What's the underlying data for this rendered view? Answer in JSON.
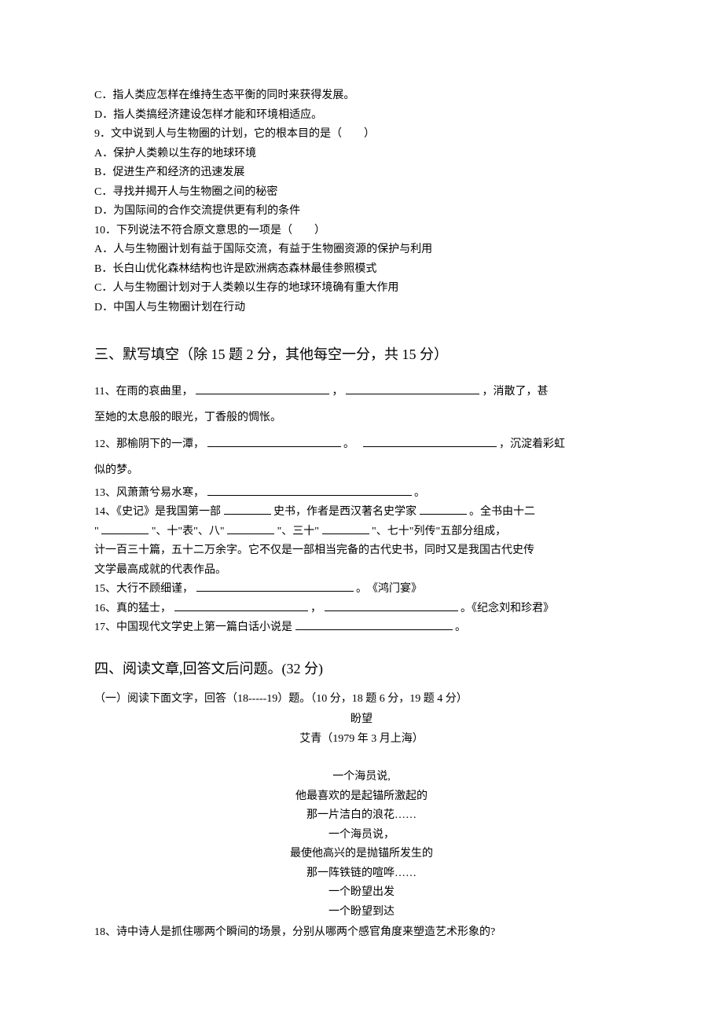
{
  "optC": "C．指人类应怎样在维持生态平衡的同时来获得发展。",
  "optD": "D．指人类搞经济建设怎样才能和环境相适应。",
  "q9": "9．文中说到人与生物圈的计划，它的根本目的是（　　）",
  "q9A": "A．保护人类赖以生存的地球环境",
  "q9B": "B．促进生产和经济的迅速发展",
  "q9C": "C．寻找并揭开人与生物圈之间的秘密",
  "q9D": "D．为国际间的合作交流提供更有利的条件",
  "q10": "10．下列说法不符合原文意思的一项是（　　）",
  "q10A": "A．人与生物圈计划有益于国际交流，有益于生物圈资源的保护与利用",
  "q10B": "B．长白山优化森林结构也许是欧洲病态森林最佳参照模式",
  "q10C": "C．人与生物圈计划对于人类赖以生存的地球环境确有重大作用",
  "q10D": "D．中国人与生物圈计划在行动",
  "section3": "三、默写填空（除 15 题 2 分，其他每空一分，共 15 分）",
  "q11a": "11、在雨的哀曲里，",
  "q11b": "，",
  "q11c": "，消散了，甚",
  "q11line2": "至她的太息般的眼光，丁香般的惆怅。",
  "q12a": "12、那榆阴下的一潭，",
  "q12b": "。　",
  "q12c": "，沉淀着彩虹",
  "q12line2": "似的梦。",
  "q13a": "13、风萧萧兮易水寒，",
  "q13b": "。",
  "q14a": "14、《史记》是我国第一部",
  "q14b": "史书，作者是西汉著名史学家",
  "q14c": "。全书由十二",
  "q14line2a": "\"",
  "q14line2b": "\"、十\"表\"、八\"",
  "q14line2c": "\"、三十\"",
  "q14line2d": "\"、七十\"列传\"五部分组成，",
  "q14line3": "计一百三十篇，五十二万余字。它不仅是一部相当完备的古代史书，同时又是我国古代史传",
  "q14line4": "文学最高成就的代表作品。",
  "q15a": "15、大行不顾细谨，",
  "q15b": "。　《鸿门宴》",
  "q16a": "16、真的猛士，",
  "q16b": "，",
  "q16c": "。《纪念刘和珍君》",
  "q17a": "17、中国现代文学史上第一篇白话小说是",
  "q17b": "。",
  "section4": "四、阅读文章,回答文后问题。(32 分)",
  "sec4sub": "（一）阅读下面文字，回答（18-----19）题。（10 分，18 题 6 分，19 题 4 分）",
  "poemTitle": "盼望",
  "poemAuthor": "艾青（1979 年 3 月上海）",
  "p1": "一个海员说,",
  "p2": "他最喜欢的是起锚所激起的",
  "p3": "那一片洁白的浪花……",
  "p4": "一个海员说，",
  "p5": "最使他高兴的是抛锚所发生的",
  "p6": "那一阵铁链的喧哗……",
  "p7": "一个盼望出发",
  "p8": "一个盼望到达",
  "q18": "18、诗中诗人是抓住哪两个瞬间的场景，分别从哪两个感官角度来塑造艺术形象的?"
}
